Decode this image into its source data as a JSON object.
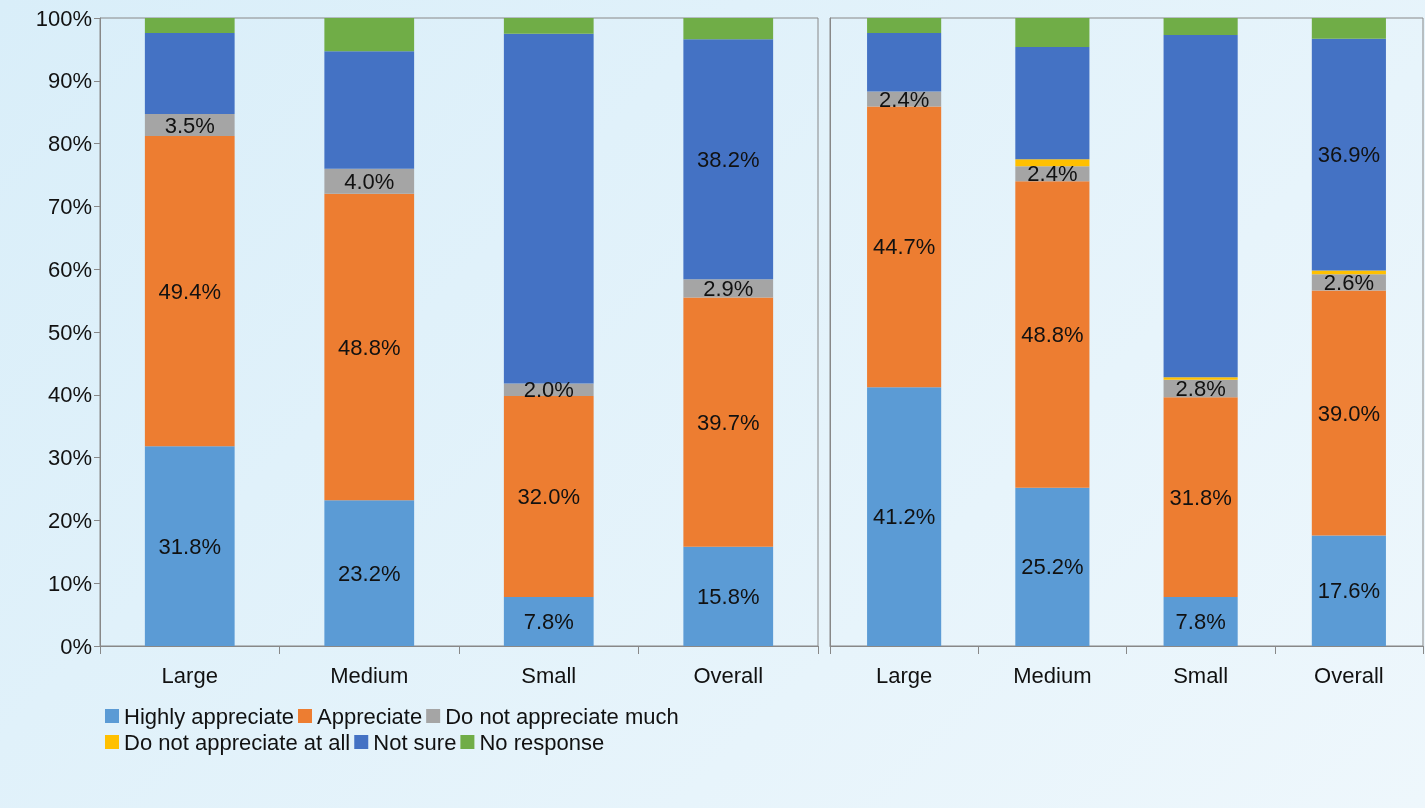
{
  "chart_data": [
    {
      "type": "bar",
      "stacked": true,
      "categories": [
        "Large",
        "Medium",
        "Small",
        "Overall"
      ],
      "ylim": [
        0,
        100
      ],
      "yticks": [
        {
          "value": 0,
          "label": "0%"
        },
        {
          "value": 10,
          "label": "10%"
        },
        {
          "value": 20,
          "label": "20%"
        },
        {
          "value": 30,
          "label": "30%"
        },
        {
          "value": 40,
          "label": "40%"
        },
        {
          "value": 50,
          "label": "50%"
        },
        {
          "value": 60,
          "label": "60%"
        },
        {
          "value": 70,
          "label": "70%"
        },
        {
          "value": 80,
          "label": "80%"
        },
        {
          "value": 90,
          "label": "90%"
        },
        {
          "value": 100,
          "label": "100%"
        }
      ],
      "grid": false,
      "legend": "bottom",
      "series": [
        {
          "name": "Highly appreciate",
          "color": "#5b9bd5",
          "values": [
            31.8,
            23.2,
            7.8,
            15.8
          ],
          "value_labels": [
            "31.8%",
            "23.2%",
            "7.8%",
            "15.8%"
          ]
        },
        {
          "name": "Appreciate",
          "color": "#ed7d31",
          "values": [
            49.4,
            48.8,
            32.0,
            39.7
          ],
          "value_labels": [
            "49.4%",
            "48.8%",
            "32.0%",
            "39.7%"
          ]
        },
        {
          "name": "Do not appreciate much",
          "color": "#a5a5a5",
          "values": [
            3.5,
            4.0,
            2.0,
            2.9
          ],
          "value_labels": [
            "3.5%",
            "4.0%",
            "2.0%",
            "2.9%"
          ]
        },
        {
          "name": "Do not appreciate at all",
          "color": "#ffc000",
          "values": [
            0,
            0,
            0,
            0
          ],
          "value_labels": [
            null,
            null,
            null,
            null
          ]
        },
        {
          "name": "Not sure",
          "color": "#4472c4",
          "values": [
            12.9,
            18.7,
            55.7,
            38.2
          ],
          "value_labels": [
            null,
            null,
            null,
            "38.2%"
          ]
        },
        {
          "name": "No response",
          "color": "#70ad47",
          "values": [
            2.4,
            5.3,
            2.5,
            3.4
          ],
          "value_labels": [
            null,
            null,
            null,
            null
          ]
        }
      ]
    },
    {
      "type": "bar",
      "stacked": true,
      "categories": [
        "Large",
        "Medium",
        "Small",
        "Overall"
      ],
      "ylim": [
        0,
        100
      ],
      "tick_labels": "x",
      "grid": false,
      "series": [
        {
          "color": "#5b9bd5",
          "values": [
            41.2,
            25.2,
            7.8,
            17.6
          ],
          "value_labels": [
            "41.2%",
            "25.2%",
            "7.8%",
            "17.6%"
          ]
        },
        {
          "color": "#ed7d31",
          "values": [
            44.7,
            48.8,
            31.8,
            39.0
          ],
          "value_labels": [
            "44.7%",
            "48.8%",
            "31.8%",
            "39.0%"
          ]
        },
        {
          "color": "#a5a5a5",
          "values": [
            2.4,
            2.4,
            2.8,
            2.6
          ],
          "value_labels": [
            "2.4%",
            "2.4%",
            "2.8%",
            "2.6%"
          ]
        },
        {
          "color": "#ffc000",
          "values": [
            0,
            1.1,
            0.4,
            0.6
          ],
          "value_labels": [
            null,
            null,
            null,
            null
          ]
        },
        {
          "color": "#4472c4",
          "values": [
            9.3,
            17.9,
            54.5,
            36.9
          ],
          "value_labels": [
            null,
            null,
            null,
            "36.9%"
          ]
        },
        {
          "color": "#70ad47",
          "values": [
            2.4,
            4.6,
            2.7,
            3.3
          ],
          "value_labels": [
            null,
            null,
            null,
            null
          ]
        }
      ]
    }
  ]
}
